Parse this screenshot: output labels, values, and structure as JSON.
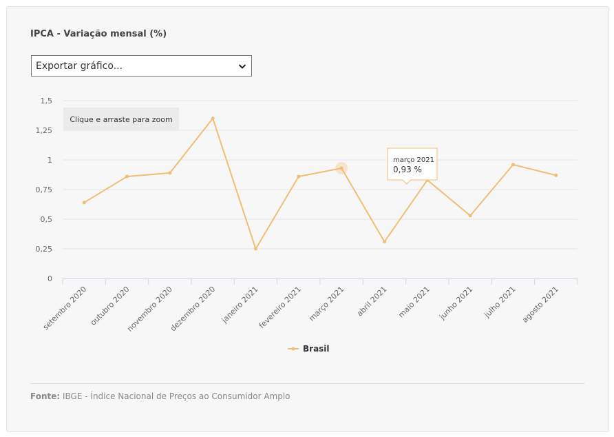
{
  "title": "IPCA - Variação mensal (%)",
  "export_select": {
    "value": "Exportar gráfico..."
  },
  "zoom_hint": "Clique e arraste para zoom",
  "tooltip": {
    "category": "março 2021",
    "value_text": "0,93 %"
  },
  "source": {
    "label": "Fonte:",
    "text": "IBGE - Índice Nacional de Preços ao Consumidor Amplo"
  },
  "colors": {
    "series": "#f2bd74",
    "grid": "#e6e6e6",
    "axis": "#ccd6eb",
    "text": "#666666"
  },
  "chart_data": {
    "type": "line",
    "title": "IPCA - Variação mensal (%)",
    "categories": [
      "setembro 2020",
      "outubro 2020",
      "novembro 2020",
      "dezembro 2020",
      "janeiro 2021",
      "fevereiro 2021",
      "março 2021",
      "abril 2021",
      "maio 2021",
      "junho 2021",
      "julho 2021",
      "agosto 2021"
    ],
    "series": [
      {
        "name": "Brasil",
        "values": [
          0.64,
          0.86,
          0.89,
          1.35,
          0.25,
          0.86,
          0.93,
          0.31,
          0.83,
          0.53,
          0.96,
          0.87
        ]
      }
    ],
    "ylim": [
      0,
      1.5
    ],
    "yticks": [
      "0",
      "0,25",
      "0,5",
      "0,75",
      "1",
      "1,25",
      "1,5"
    ],
    "grid": true,
    "legend": "bottom-center",
    "highlighted_category": "março 2021"
  }
}
